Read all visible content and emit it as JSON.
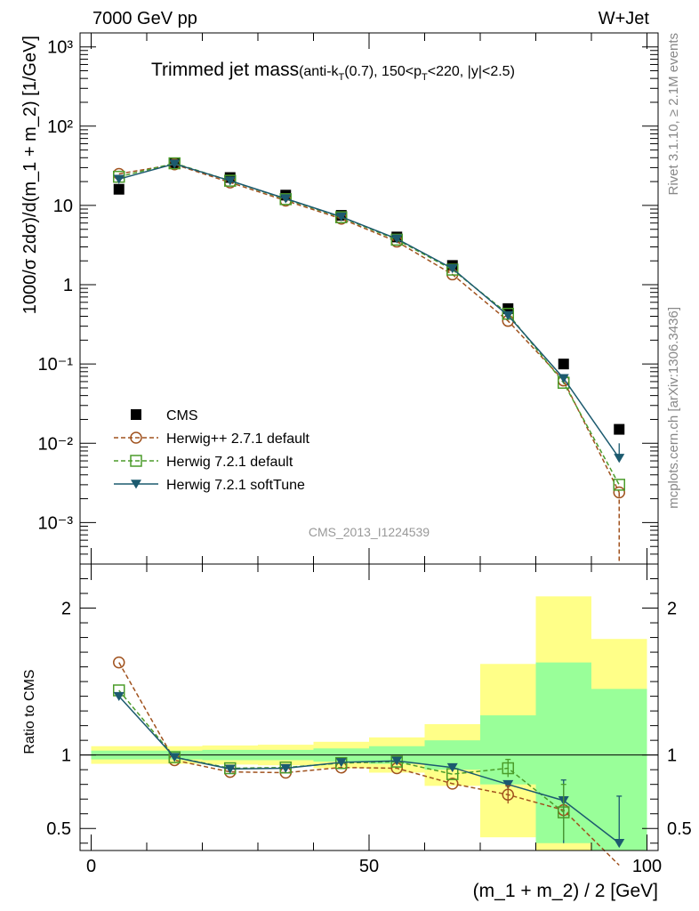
{
  "header": {
    "left": "7000 GeV pp",
    "right": "W+Jet"
  },
  "side_labels": {
    "rivet": "Rivet 3.1.10, ≥ 2.1M events",
    "mcplots": "mcplots.cern.ch [arXiv:1306.3436]"
  },
  "title_main": "Trimmed jet mass",
  "title_sub_parts": [
    "(anti-k",
    "T",
    "(0.7), 150<p",
    "T",
    "<220, |y|<2.5)"
  ],
  "watermark": "CMS_2013_I1224539",
  "colors": {
    "cms": "#000000",
    "herwigpp": "#a0521e",
    "herwig721": "#4b9c2a",
    "softtune": "#1c5a6f",
    "band_outer": "#ffff88",
    "band_inner": "#99ff99"
  },
  "chart_data": [
    {
      "type": "scatter",
      "panel": "main",
      "ylabel": "1000/σ 2dσ)/d(m_1 + m_2) [1/GeV]",
      "yscale": "log",
      "ylim": [
        0.0003,
        1500
      ],
      "xlim": [
        -2,
        102
      ],
      "yticks": [
        {
          "value": 0.001,
          "label": "10⁻³"
        },
        {
          "value": 0.01,
          "label": "10⁻²"
        },
        {
          "value": 0.1,
          "label": "10⁻¹"
        },
        {
          "value": 1,
          "label": "1"
        },
        {
          "value": 10,
          "label": "10"
        },
        {
          "value": 100,
          "label": "10²"
        },
        {
          "value": 1000,
          "label": "10³"
        }
      ],
      "legend_position": "bottom-left",
      "x": [
        5,
        15,
        25,
        35,
        45,
        55,
        65,
        75,
        85,
        95
      ],
      "series": [
        {
          "name": "CMS",
          "key": "cms",
          "marker": "square-filled",
          "line": "none",
          "values": [
            16,
            34,
            22.5,
            13.5,
            7.5,
            4.0,
            1.75,
            0.5,
            0.1,
            0.015
          ]
        },
        {
          "name": "Herwig++ 2.7.1 default",
          "key": "herwigpp",
          "marker": "circle-open",
          "line": "dashed",
          "values": [
            25,
            33,
            19.5,
            11.5,
            6.8,
            3.5,
            1.35,
            0.35,
            0.062,
            0.0024
          ]
        },
        {
          "name": "Herwig 7.2.1 default",
          "key": "herwig721",
          "marker": "square-open",
          "line": "dashed",
          "values": [
            23,
            34,
            20.5,
            12.0,
            7.1,
            3.7,
            1.55,
            0.43,
            0.058,
            0.003
          ]
        },
        {
          "name": "Herwig 7.2.1 softTune",
          "key": "softtune",
          "marker": "triangle-down-filled",
          "line": "solid",
          "values": [
            21.5,
            33.5,
            20.5,
            12.2,
            7.2,
            3.8,
            1.6,
            0.41,
            0.066,
            0.0065
          ]
        }
      ]
    },
    {
      "type": "line",
      "panel": "ratio",
      "ylabel": "Ratio to CMS",
      "xlabel": "(m_1 + m_2) / 2 [GeV]",
      "ylim": [
        0.35,
        2.3
      ],
      "xlim": [
        -2,
        102
      ],
      "yticks": [
        0.5,
        1,
        2
      ],
      "xticks": [
        0,
        50,
        100
      ],
      "reference_line": 1,
      "bands": [
        {
          "x_low": 0,
          "x_high": 10,
          "outer": [
            0.94,
            1.06
          ],
          "inner": [
            0.97,
            1.03
          ]
        },
        {
          "x_low": 10,
          "x_high": 20,
          "outer": [
            0.94,
            1.06
          ],
          "inner": [
            0.97,
            1.03
          ]
        },
        {
          "x_low": 20,
          "x_high": 30,
          "outer": [
            0.935,
            1.065
          ],
          "inner": [
            0.965,
            1.035
          ]
        },
        {
          "x_low": 30,
          "x_high": 40,
          "outer": [
            0.93,
            1.07
          ],
          "inner": [
            0.965,
            1.035
          ]
        },
        {
          "x_low": 40,
          "x_high": 50,
          "outer": [
            0.91,
            1.09
          ],
          "inner": [
            0.955,
            1.045
          ]
        },
        {
          "x_low": 50,
          "x_high": 60,
          "outer": [
            0.88,
            1.12
          ],
          "inner": [
            0.94,
            1.06
          ]
        },
        {
          "x_low": 60,
          "x_high": 70,
          "outer": [
            0.79,
            1.21
          ],
          "inner": [
            0.9,
            1.1
          ]
        },
        {
          "x_low": 70,
          "x_high": 80,
          "outer": [
            0.44,
            1.62
          ],
          "inner": [
            0.8,
            1.27
          ]
        },
        {
          "x_low": 80,
          "x_high": 90,
          "outer": [
            0.3,
            2.08
          ],
          "inner": [
            0.4,
            1.63
          ]
        },
        {
          "x_low": 90,
          "x_high": 100,
          "outer": [
            0.3,
            1.79
          ],
          "inner": [
            0.3,
            1.45
          ]
        }
      ],
      "x": [
        5,
        15,
        25,
        35,
        45,
        55,
        65,
        75,
        85,
        95
      ],
      "series": [
        {
          "name": "Herwig++ 2.7.1 default",
          "key": "herwigpp",
          "marker": "circle-open",
          "line": "dashed",
          "values": [
            1.63,
            0.965,
            0.885,
            0.88,
            0.915,
            0.91,
            0.805,
            0.73,
            0.625,
            0.2
          ]
        },
        {
          "name": "Herwig 7.2.1 default",
          "key": "herwig721",
          "marker": "square-open",
          "line": "dashed",
          "values": [
            1.44,
            0.985,
            0.91,
            0.915,
            0.945,
            0.955,
            0.87,
            0.91,
            0.61,
            null
          ]
        },
        {
          "name": "Herwig 7.2.1 softTune",
          "key": "softtune",
          "marker": "triangle-down-filled",
          "line": "solid",
          "values": [
            1.4,
            0.985,
            0.905,
            0.91,
            0.95,
            0.96,
            0.915,
            0.8,
            0.69,
            0.4
          ]
        }
      ]
    }
  ]
}
